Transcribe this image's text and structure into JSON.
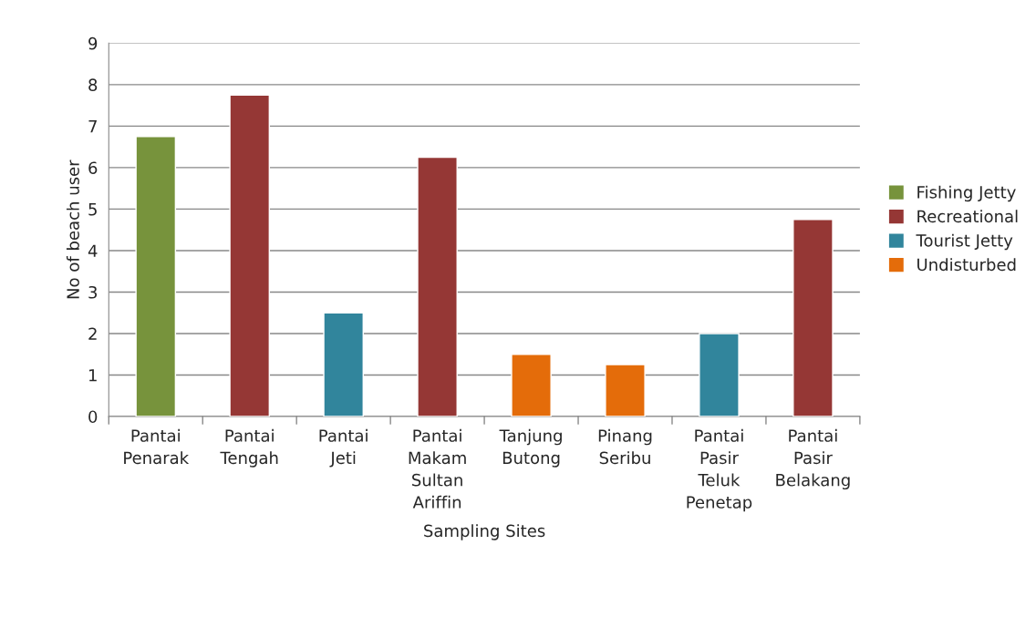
{
  "chart_data": {
    "type": "bar",
    "xlabel": "Sampling Sites",
    "ylabel": "No of beach user",
    "categories": [
      "Pantai\nPenarak",
      "Pantai\nTengah",
      "Pantai\nJeti",
      "Pantai\nMakam\nSultan\nAriffin",
      "Tanjung\nButong",
      "Pinang\nSeribu",
      "Pantai\nPasir\nTeluk\nPenetap",
      "Pantai\nPasir\nBelakang"
    ],
    "series": [
      {
        "name": "Fishing Jetty",
        "color": "#77933c",
        "values": [
          6.75,
          null,
          null,
          null,
          null,
          null,
          null,
          null
        ]
      },
      {
        "name": "Recreational",
        "color": "#953735",
        "values": [
          null,
          7.75,
          null,
          6.25,
          null,
          null,
          null,
          4.75
        ]
      },
      {
        "name": "Tourist Jetty",
        "color": "#31859c",
        "values": [
          null,
          null,
          2.5,
          null,
          null,
          null,
          2,
          null
        ]
      },
      {
        "name": "Undisturbed",
        "color": "#e46c0a",
        "values": [
          null,
          null,
          null,
          null,
          1.5,
          1.25,
          null,
          null
        ]
      }
    ],
    "ylim": [
      0,
      9
    ],
    "yticks": [
      0,
      1,
      2,
      3,
      4,
      5,
      6,
      7,
      8,
      9
    ],
    "grid": "y",
    "legend": "right"
  }
}
